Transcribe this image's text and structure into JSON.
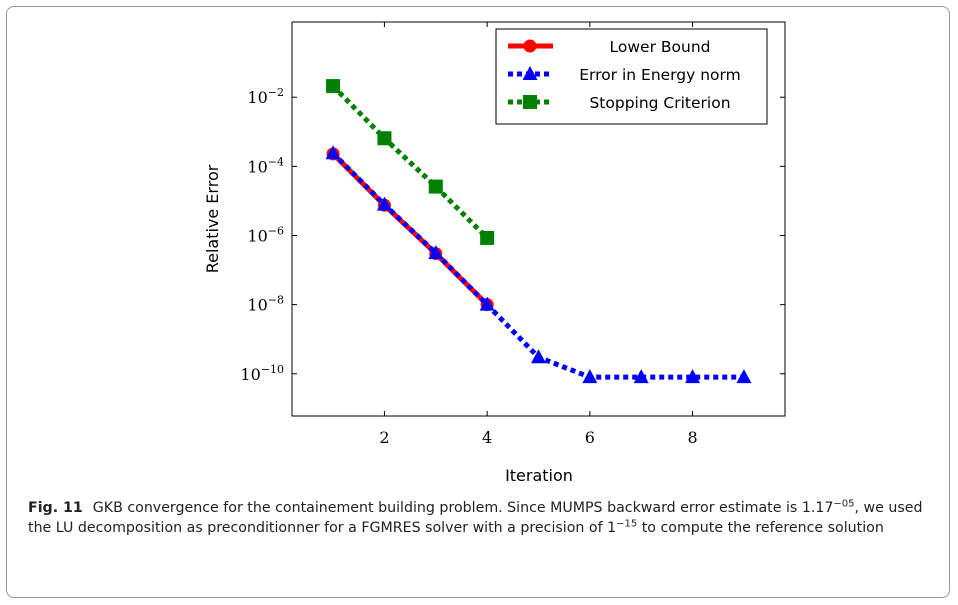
{
  "chart_data": {
    "type": "line",
    "xlabel": "Iteration",
    "ylabel": "Relative Error",
    "x_ticks": [
      2,
      4,
      6,
      8
    ],
    "y_scale": "log",
    "y_ticks": [
      "10^-10",
      "10^-8",
      "10^-6",
      "10^-4",
      "10^-2"
    ],
    "xlim": [
      0.2,
      9.8
    ],
    "ylim": [
      6e-12,
      1.5
    ],
    "legend_position": "top-right",
    "series": [
      {
        "name": "Lower Bound",
        "color": "#ff0000",
        "marker": "circle",
        "style": "solid",
        "x": [
          1,
          2,
          3,
          4
        ],
        "y": [
          0.00023,
          7.5e-06,
          3e-07,
          1e-08
        ]
      },
      {
        "name": "Error in Energy norm",
        "color": "#0000ff",
        "marker": "triangle",
        "style": "dotted",
        "x": [
          1,
          2,
          3,
          4,
          5,
          6,
          7,
          8,
          9
        ],
        "y": [
          0.00024,
          7.8e-06,
          3.1e-07,
          1e-08,
          3e-10,
          8e-11,
          8e-11,
          8e-11,
          8e-11
        ]
      },
      {
        "name": "Stopping Criterion",
        "color": "#008000",
        "marker": "square",
        "style": "dotted",
        "x": [
          1,
          2,
          3,
          4
        ],
        "y": [
          0.021,
          0.00065,
          2.6e-05,
          8.5e-07
        ]
      }
    ]
  },
  "caption": {
    "label": "Fig. 11",
    "text_a": "GKB convergence for the containement building problem. Since MUMPS backward error estimate is 1.17",
    "sup_a": "−05",
    "text_b": ", we used the LU decomposition as preconditionner for a FGMRES solver with a precision of 1",
    "sup_b": "−15",
    "text_c": " to compute the reference solution"
  }
}
